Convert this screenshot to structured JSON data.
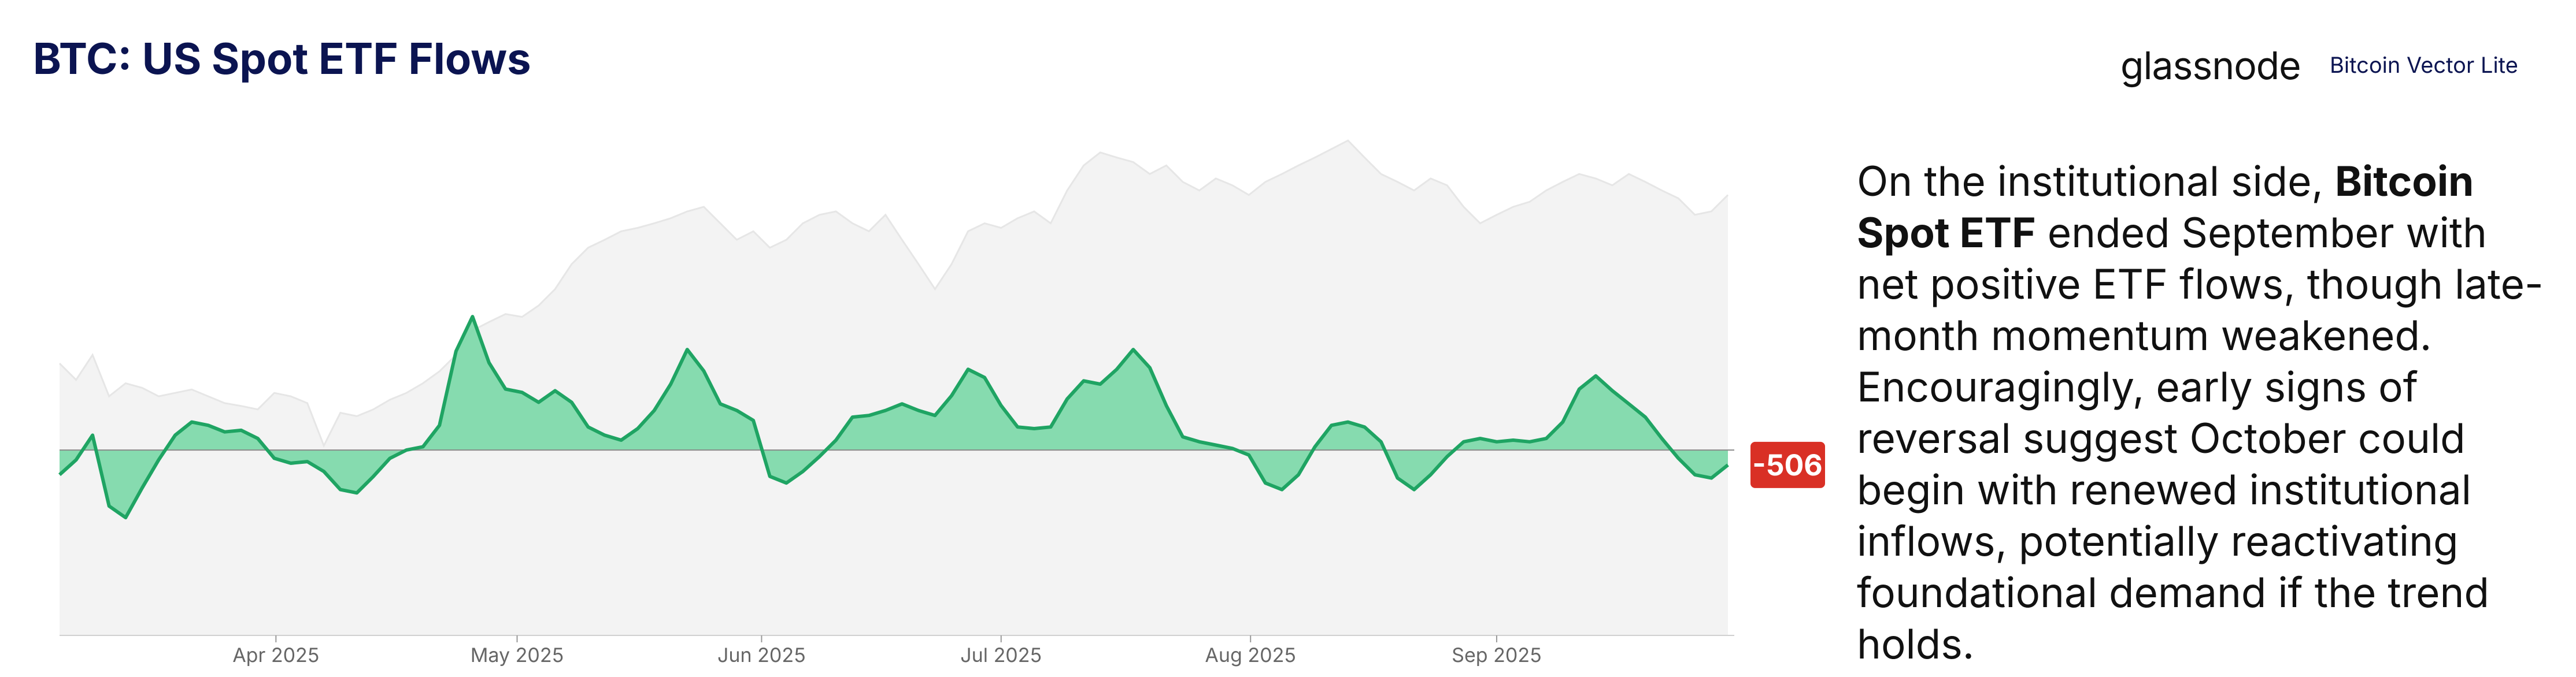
{
  "chart_data": {
    "type": "area",
    "title": "BTC: US Spot ETF Flows",
    "brand": "glassnode",
    "brand_subtitle": "Bitcoin Vector Lite",
    "xlim": [
      0,
      101
    ],
    "xticks": [
      {
        "value": 13.1,
        "label": "Apr 2025"
      },
      {
        "value": 27.7,
        "label": "May 2025"
      },
      {
        "value": 42.5,
        "label": "Jun 2025"
      },
      {
        "value": 57,
        "label": "Jul 2025"
      },
      {
        "value": 72.1,
        "label": "Aug 2025"
      },
      {
        "value": 87,
        "label": "Sep 2025"
      }
    ],
    "ylim": [
      -6300,
      10800
    ],
    "y2lim": [
      36750,
      125450
    ],
    "series": [
      {
        "color": "#1fa463",
        "fill": "#7fd9ab",
        "values": [
          -840,
          -336,
          504,
          -1904,
          -2296,
          -1288,
          -336,
          504,
          952,
          840,
          616,
          672,
          392,
          -280,
          -448,
          -392,
          -728,
          -1344,
          -1456,
          -896,
          -280,
          0,
          112,
          840,
          3360,
          4536,
          2968,
          2072,
          1960,
          1624,
          2016,
          1624,
          784,
          504,
          336,
          728,
          1344,
          2240,
          3416,
          2688,
          1568,
          1344,
          1008,
          -896,
          -1120,
          -728,
          -224,
          336,
          1120,
          1176,
          1344,
          1568,
          1344,
          1176,
          1848,
          2744,
          2464,
          1512,
          784,
          728,
          784,
          1736,
          2352,
          2240,
          2744,
          3416,
          2800,
          1512,
          448,
          280,
          168,
          56,
          -168,
          -1120,
          -1344,
          -840,
          112,
          840,
          952,
          784,
          280,
          -952,
          -1344,
          -840,
          -224,
          280,
          392,
          280,
          336,
          280,
          392,
          952,
          2072,
          2520,
          2016,
          1568,
          1120,
          392,
          -280,
          -840,
          -952,
          -506
        ],
        "label_color": "#d93025"
      },
      {
        "color": "#e6e6e6",
        "fill": "#f3f3f3",
        "axis": "y2",
        "values": [
          84700,
          81800,
          86200,
          78900,
          81200,
          80400,
          78900,
          79500,
          80100,
          78900,
          77700,
          77200,
          76600,
          79500,
          78900,
          77700,
          70200,
          76000,
          75400,
          76600,
          78300,
          79500,
          81200,
          83300,
          86200,
          90500,
          92000,
          93400,
          92900,
          94900,
          97800,
          102200,
          105100,
          106500,
          108000,
          108600,
          109400,
          110300,
          111500,
          112300,
          109400,
          106500,
          108000,
          105100,
          106500,
          109400,
          110900,
          111500,
          109400,
          108000,
          110900,
          106500,
          102200,
          97800,
          102200,
          108000,
          109400,
          108600,
          110300,
          111500,
          109400,
          115200,
          119600,
          121900,
          121000,
          120200,
          118100,
          119600,
          116700,
          115200,
          117300,
          116100,
          114400,
          116700,
          118100,
          119600,
          121000,
          122500,
          124000,
          121000,
          118100,
          116700,
          115200,
          117300,
          116100,
          112300,
          109400,
          110900,
          112300,
          113200,
          115200,
          116700,
          118100,
          117300,
          116100,
          118100,
          116700,
          115200,
          113800,
          110900,
          111500,
          114400
        ]
      }
    ],
    "text": {
      "before": "On the institutional side, ",
      "bold": "Bitcoin Spot ETF",
      "after": " ended September with net positive ETF flows, though late-month momentum weakened. Encouragingly, early signs of reversal suggest October could begin with renewed institutional inflows, potentially reactivating foundational demand if the trend holds."
    }
  }
}
